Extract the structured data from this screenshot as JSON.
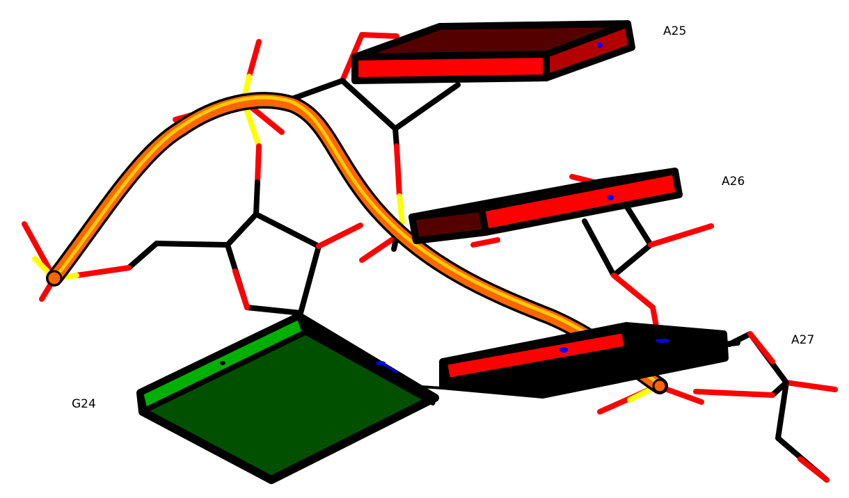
{
  "labels": {
    "a25": "A25",
    "a26": "A26",
    "a27": "A27",
    "g24": "G24"
  },
  "colors": {
    "background": "#ffffff",
    "bond_black": "#000000",
    "oxygen": "#ff0000",
    "oxygen_dark": "#b30000",
    "phosphorus": "#ffff00",
    "nitrogen": "#0000ff",
    "adenine_face": "#ff0000",
    "adenine_face_dark": "#550000",
    "guanine_face": "#005000",
    "guanine_face_light": "#00b000",
    "backbone_tube": "#ff6600",
    "backbone_highlight": "#ffcc00"
  }
}
